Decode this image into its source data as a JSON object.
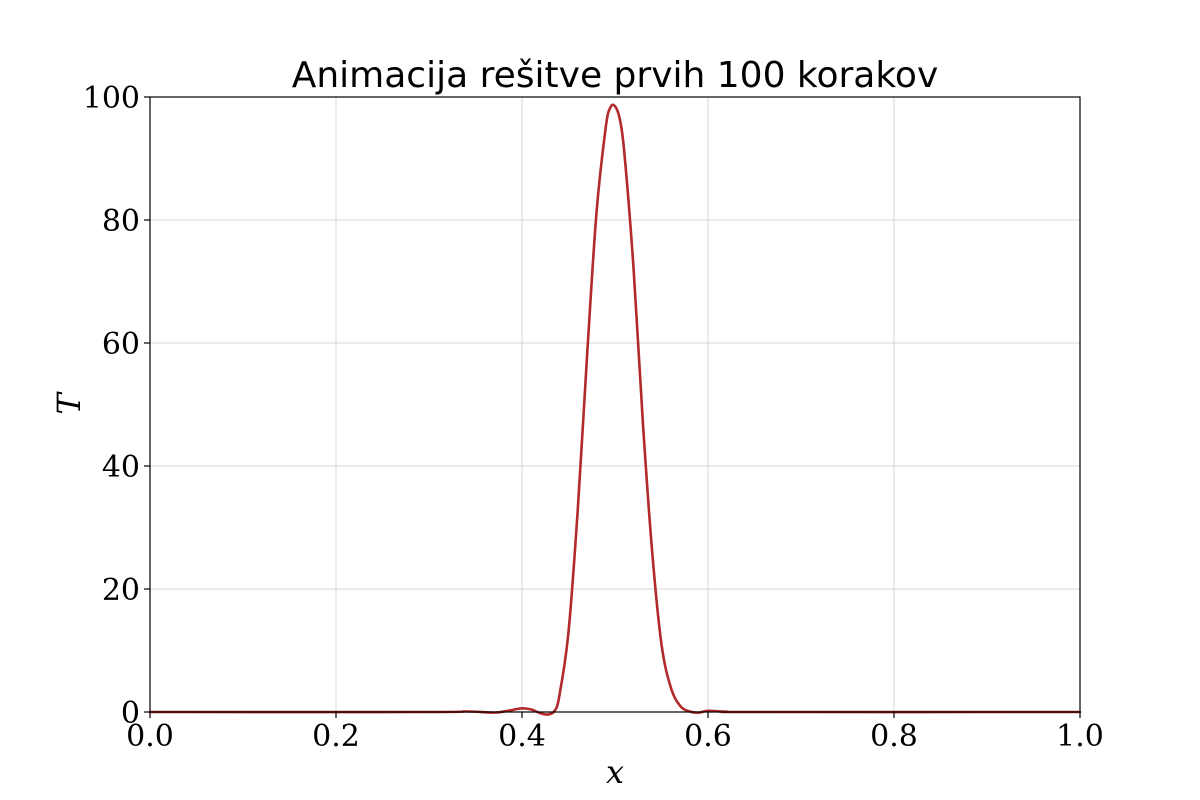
{
  "chart_data": {
    "type": "line",
    "title": "Animacija rešitve prvih 100 korakov",
    "xlabel": "x",
    "ylabel": "T",
    "xlim": [
      0.0,
      1.0
    ],
    "ylim": [
      0,
      100
    ],
    "xticks": [
      "0.0",
      "0.2",
      "0.4",
      "0.6",
      "0.8",
      "1.0"
    ],
    "yticks": [
      "0",
      "20",
      "40",
      "60",
      "80",
      "100"
    ],
    "grid": true,
    "series": [
      {
        "color": "#b22a2a",
        "x": [
          0.0,
          0.3,
          0.34,
          0.37,
          0.385,
          0.4,
          0.41,
          0.42,
          0.428,
          0.435,
          0.44,
          0.45,
          0.46,
          0.47,
          0.48,
          0.49,
          0.495,
          0.5,
          0.505,
          0.51,
          0.52,
          0.53,
          0.54,
          0.55,
          0.56,
          0.57,
          0.58,
          0.59,
          0.6,
          0.62,
          0.65,
          1.0
        ],
        "y": [
          0,
          0,
          0.1,
          -0.1,
          0.2,
          0.6,
          0.4,
          -0.2,
          -0.4,
          0.2,
          2.5,
          13,
          33,
          58,
          81,
          95,
          98.3,
          98.5,
          96.5,
          91,
          72,
          47,
          26,
          11,
          4,
          1,
          0.1,
          -0.1,
          0.2,
          0.05,
          0,
          0
        ]
      }
    ]
  }
}
